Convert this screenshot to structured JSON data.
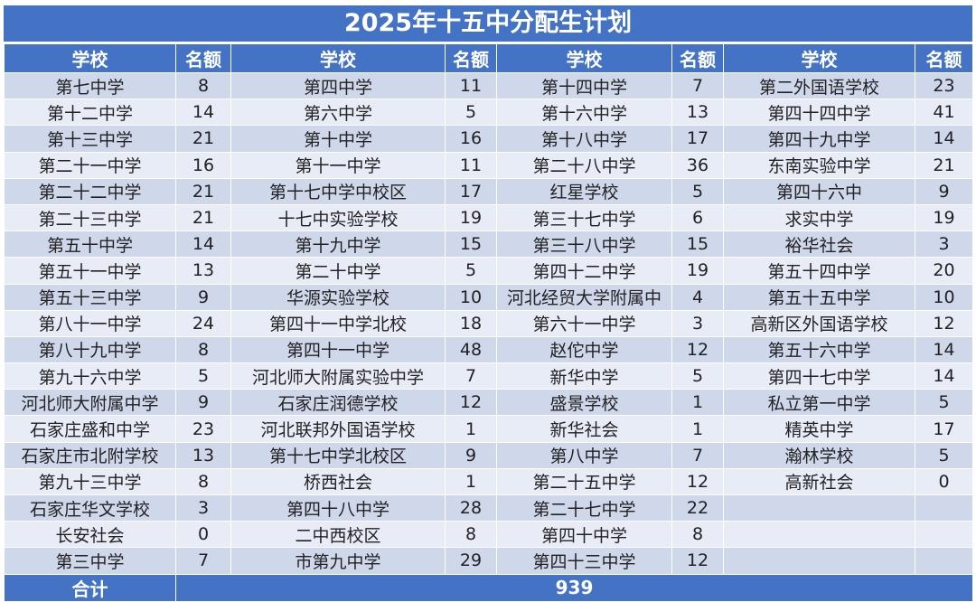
{
  "title": "2025年十五中分配生计划",
  "headers": [
    "学校",
    "名额",
    "学校",
    "名额",
    "学校",
    "名额",
    "学校",
    "名额"
  ],
  "rows": [
    [
      "第七中学",
      "8",
      "第四中学",
      "11",
      "第十四中学",
      "7",
      "第二外国语学校",
      "23"
    ],
    [
      "第十二中学",
      "14",
      "第六中学",
      "5",
      "第十六中学",
      "13",
      "第四十四中学",
      "41"
    ],
    [
      "第十三中学",
      "21",
      "第十中学",
      "16",
      "第十八中学",
      "17",
      "第四十九中学",
      "14"
    ],
    [
      "第二十一中学",
      "16",
      "第十一中学",
      "11",
      "第二十八中学",
      "36",
      "东南实验中学",
      "21"
    ],
    [
      "第二十二中学",
      "21",
      "第十七中学中校区",
      "17",
      "红星学校",
      "5",
      "第四十六中",
      "9"
    ],
    [
      "第二十三中学",
      "21",
      "十七中实验学校",
      "19",
      "第三十七中学",
      "6",
      "求实中学",
      "19"
    ],
    [
      "第五十中学",
      "14",
      "第十九中学",
      "15",
      "第三十八中学",
      "15",
      "裕华社会",
      "3"
    ],
    [
      "第五十一中学",
      "13",
      "第二十中学",
      "5",
      "第四十二中学",
      "19",
      "第五十四中学",
      "20"
    ],
    [
      "第五十三中学",
      "9",
      "华源实验学校",
      "10",
      "河北经贸大学附属中",
      "4",
      "第五十五中学",
      "10"
    ],
    [
      "第八十一中学",
      "24",
      "第四十一中学北校",
      "18",
      "第六十一中学",
      "3",
      "高新区外国语学校",
      "12"
    ],
    [
      "第八十九中学",
      "8",
      "第四十一中学",
      "48",
      "赵佗中学",
      "12",
      "第五十六中学",
      "14"
    ],
    [
      "第九十六中学",
      "5",
      "河北师大附属实验中学",
      "7",
      "新华中学",
      "5",
      "第四十七中学",
      "14"
    ],
    [
      "河北师大附属中学",
      "9",
      "石家庄润德学校",
      "12",
      "盛景学校",
      "1",
      "私立第一中学",
      "5"
    ],
    [
      "石家庄盛和中学",
      "23",
      "河北联邦外国语学校",
      "1",
      "新华社会",
      "1",
      "精英中学",
      "17"
    ],
    [
      "石家庄市北附学校",
      "13",
      "第十七中学北校区",
      "9",
      "第八中学",
      "7",
      "瀚林学校",
      "5"
    ],
    [
      "第九十三中学",
      "8",
      "桥西社会",
      "1",
      "第二十五中学",
      "12",
      "高新社会",
      "0"
    ],
    [
      "石家庄华文学校",
      "3",
      "第四十八中学",
      "28",
      "第二十七中学",
      "22",
      "",
      ""
    ],
    [
      "长安社会",
      "0",
      "二中西校区",
      "8",
      "第四十中学",
      "8",
      "",
      ""
    ],
    [
      "第三中学",
      "7",
      "市第九中学",
      "29",
      "第四十三中学",
      "12",
      "",
      ""
    ]
  ],
  "total": {
    "label": "合计",
    "value": "939"
  }
}
